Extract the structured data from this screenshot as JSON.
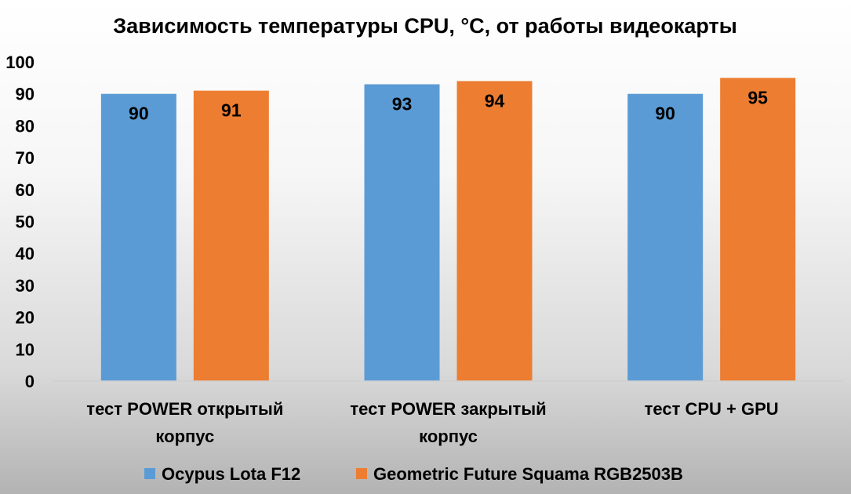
{
  "chart_data": {
    "type": "bar",
    "title": "Зависимость температуры CPU, °C, от работы видеокарты",
    "xlabel": "",
    "ylabel": "",
    "categories": [
      [
        "тест POWER открытый",
        "корпус"
      ],
      [
        "тест POWER закрытый",
        "корпус"
      ],
      [
        "тест CPU + GPU"
      ]
    ],
    "series": [
      {
        "name": "Ocypus Lota F12",
        "color": "#5B9BD5",
        "values": [
          90,
          93,
          90
        ]
      },
      {
        "name": "Geometric Future Squama RGB2503B",
        "color": "#ED7D31",
        "values": [
          91,
          94,
          95
        ]
      }
    ],
    "ylim": [
      0,
      100
    ],
    "yticks": [
      0,
      10,
      20,
      30,
      40,
      50,
      60,
      70,
      80,
      90,
      100
    ],
    "grid": false,
    "legend_position": "bottom",
    "data_labels": "inside-end"
  }
}
